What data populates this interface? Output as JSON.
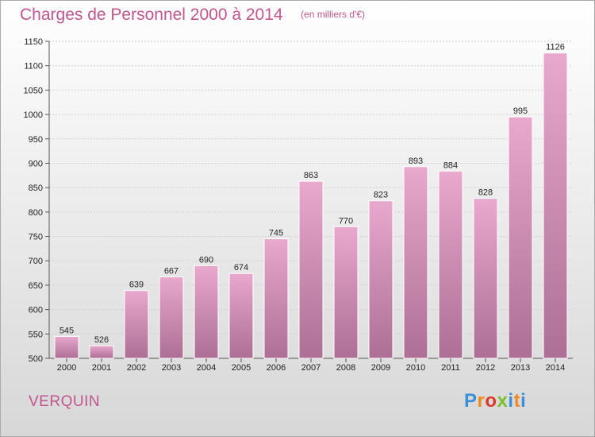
{
  "header": {
    "title": "Charges de Personnel 2000 à 2014",
    "subtitle": "(en milliers d'€)"
  },
  "footer": {
    "commune": "VERQUIN",
    "logo_letters": [
      "P",
      "r",
      "o",
      "x",
      "i",
      "t",
      "i"
    ],
    "logo_colors": [
      "#3a8fd6",
      "#f08a1c",
      "#d93a2b",
      "#7bbf2a",
      "#3a8fd6",
      "#f08a1c",
      "#3a8fd6"
    ]
  },
  "colors": {
    "bar_top": "#e9a8cd",
    "bar_bottom": "#ad6f96",
    "accent": "#c2558f"
  },
  "chart_data": {
    "type": "bar",
    "title": "Charges de Personnel 2000 à 2014",
    "subtitle": "(en milliers d'€)",
    "categories": [
      "2000",
      "2001",
      "2002",
      "2003",
      "2004",
      "2005",
      "2006",
      "2007",
      "2008",
      "2009",
      "2010",
      "2011",
      "2012",
      "2013",
      "2014"
    ],
    "values": [
      545,
      526,
      639,
      667,
      690,
      674,
      745,
      863,
      770,
      823,
      893,
      884,
      828,
      995,
      1126
    ],
    "ylim": [
      500,
      1150
    ],
    "yticks": [
      500,
      550,
      600,
      650,
      700,
      750,
      800,
      850,
      900,
      950,
      1000,
      1050,
      1100,
      1150
    ],
    "grid": true,
    "legend": "none"
  }
}
